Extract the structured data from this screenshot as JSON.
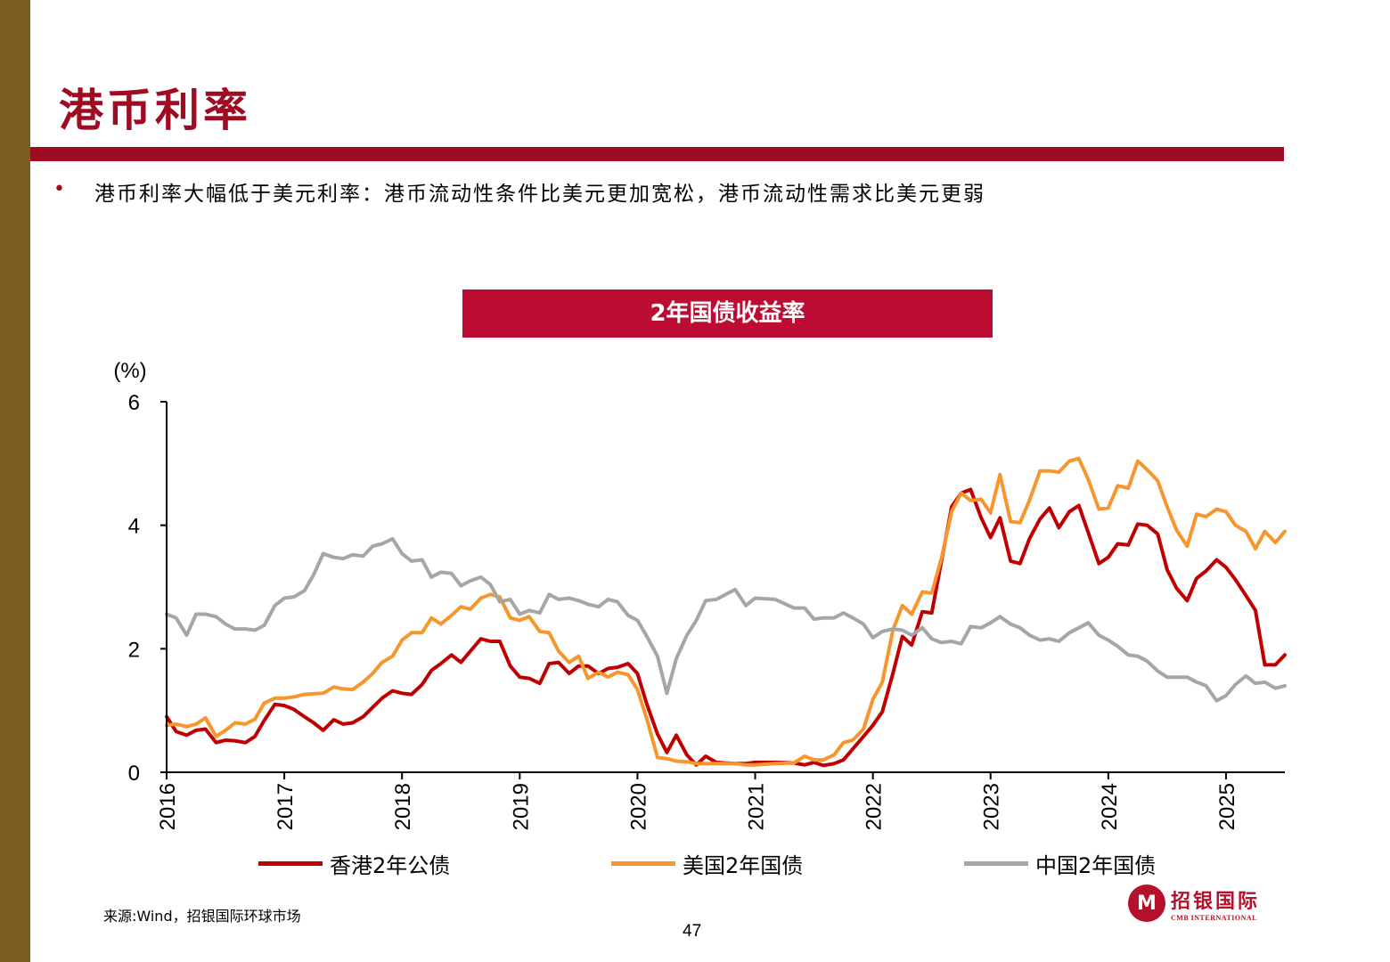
{
  "page": {
    "title": "港币利率",
    "bullet": "港币利率大幅低于美元利率：港币流动性条件比美元更加宽松，港币流动性需求比美元更弱",
    "source": "来源:Wind，招银国际环球市场",
    "page_number": "47"
  },
  "logo": {
    "cn": "招银国际",
    "en": "CMB INTERNATIONAL",
    "mark": "M"
  },
  "colors": {
    "hk": "#c00000",
    "us": "#f7962d",
    "cn": "#a6a6a6",
    "brand": "#9e0b22",
    "banner": "#bd0c33",
    "side": "#7a5c1e"
  },
  "chart_data": {
    "type": "line",
    "title": "2年国债收益率",
    "ylabel": "(%)",
    "ylim": [
      0,
      6
    ],
    "yticks": [
      0,
      2,
      4,
      6
    ],
    "xlim": [
      2016,
      2025.5
    ],
    "xticks": [
      "2016",
      "2017",
      "2018",
      "2019",
      "2020",
      "2021",
      "2022",
      "2023",
      "2024",
      "2025"
    ],
    "legend_position": "bottom",
    "grid": false,
    "series": [
      {
        "name": "香港2年公债",
        "color": "#c00000",
        "x": [
          2016.0,
          2016.08,
          2016.17,
          2016.25,
          2016.33,
          2016.42,
          2016.5,
          2016.58,
          2016.67,
          2016.75,
          2016.83,
          2016.92,
          2017.0,
          2017.08,
          2017.17,
          2017.25,
          2017.33,
          2017.42,
          2017.5,
          2017.58,
          2017.67,
          2017.75,
          2017.83,
          2017.92,
          2018.0,
          2018.08,
          2018.17,
          2018.25,
          2018.33,
          2018.42,
          2018.5,
          2018.58,
          2018.67,
          2018.75,
          2018.83,
          2018.92,
          2019.0,
          2019.08,
          2019.17,
          2019.25,
          2019.33,
          2019.42,
          2019.5,
          2019.58,
          2019.67,
          2019.75,
          2019.83,
          2019.92,
          2020.0,
          2020.08,
          2020.17,
          2020.25,
          2020.33,
          2020.42,
          2020.5,
          2020.58,
          2020.67,
          2020.75,
          2020.83,
          2020.92,
          2021.0,
          2021.17,
          2021.33,
          2021.42,
          2021.5,
          2021.58,
          2021.67,
          2021.75,
          2021.83,
          2021.92,
          2022.0,
          2022.08,
          2022.17,
          2022.25,
          2022.33,
          2022.42,
          2022.5,
          2022.58,
          2022.67,
          2022.75,
          2022.83,
          2022.92,
          2023.0,
          2023.08,
          2023.17,
          2023.25,
          2023.33,
          2023.42,
          2023.5,
          2023.58,
          2023.67,
          2023.75,
          2023.83,
          2023.92,
          2024.0,
          2024.08,
          2024.17,
          2024.25,
          2024.33,
          2024.42,
          2024.5,
          2024.58,
          2024.67,
          2024.75,
          2024.83,
          2024.92,
          2025.0,
          2025.08,
          2025.17,
          2025.25,
          2025.33,
          2025.42,
          2025.5
        ],
        "y": [
          0.9,
          0.66,
          0.6,
          0.68,
          0.7,
          0.48,
          0.52,
          0.51,
          0.48,
          0.58,
          0.84,
          1.1,
          1.08,
          1.02,
          0.9,
          0.8,
          0.68,
          0.85,
          0.78,
          0.8,
          0.9,
          1.05,
          1.2,
          1.32,
          1.28,
          1.26,
          1.42,
          1.65,
          1.76,
          1.9,
          1.78,
          1.96,
          2.16,
          2.12,
          2.12,
          1.72,
          1.54,
          1.52,
          1.44,
          1.76,
          1.78,
          1.6,
          1.72,
          1.72,
          1.6,
          1.68,
          1.7,
          1.76,
          1.6,
          1.1,
          0.62,
          0.32,
          0.6,
          0.28,
          0.12,
          0.26,
          0.16,
          0.15,
          0.14,
          0.14,
          0.16,
          0.16,
          0.15,
          0.12,
          0.16,
          0.11,
          0.14,
          0.2,
          0.38,
          0.58,
          0.76,
          0.98,
          1.6,
          2.2,
          2.06,
          2.6,
          2.58,
          3.4,
          4.3,
          4.52,
          4.58,
          4.12,
          3.8,
          4.12,
          3.42,
          3.38,
          3.78,
          4.1,
          4.28,
          3.96,
          4.22,
          4.32,
          3.88,
          3.38,
          3.48,
          3.7,
          3.68,
          4.02,
          4.0,
          3.86,
          3.28,
          2.98,
          2.78,
          3.14,
          3.26,
          3.44,
          3.32,
          3.12,
          2.86,
          2.62,
          1.74,
          1.74,
          1.9
        ]
      },
      {
        "name": "美国2年国债",
        "color": "#f7962d",
        "x": [
          2016.0,
          2016.08,
          2016.17,
          2016.25,
          2016.33,
          2016.42,
          2016.5,
          2016.58,
          2016.67,
          2016.75,
          2016.83,
          2016.92,
          2017.0,
          2017.08,
          2017.17,
          2017.25,
          2017.33,
          2017.42,
          2017.5,
          2017.58,
          2017.67,
          2017.75,
          2017.83,
          2017.92,
          2018.0,
          2018.08,
          2018.17,
          2018.25,
          2018.33,
          2018.42,
          2018.5,
          2018.58,
          2018.67,
          2018.75,
          2018.83,
          2018.92,
          2019.0,
          2019.08,
          2019.17,
          2019.25,
          2019.33,
          2019.42,
          2019.5,
          2019.58,
          2019.67,
          2019.75,
          2019.83,
          2019.92,
          2020.0,
          2020.08,
          2020.17,
          2020.25,
          2020.33,
          2020.42,
          2020.5,
          2020.58,
          2020.67,
          2020.75,
          2020.83,
          2020.92,
          2021.0,
          2021.17,
          2021.33,
          2021.42,
          2021.5,
          2021.58,
          2021.67,
          2021.75,
          2021.83,
          2021.92,
          2022.0,
          2022.08,
          2022.17,
          2022.25,
          2022.33,
          2022.42,
          2022.5,
          2022.58,
          2022.67,
          2022.75,
          2022.83,
          2022.92,
          2023.0,
          2023.08,
          2023.17,
          2023.25,
          2023.33,
          2023.42,
          2023.5,
          2023.58,
          2023.67,
          2023.75,
          2023.83,
          2023.92,
          2024.0,
          2024.08,
          2024.17,
          2024.25,
          2024.33,
          2024.42,
          2024.5,
          2024.58,
          2024.67,
          2024.75,
          2024.83,
          2024.92,
          2025.0,
          2025.08,
          2025.17,
          2025.25,
          2025.33,
          2025.42,
          2025.5
        ],
        "y": [
          0.76,
          0.78,
          0.74,
          0.78,
          0.88,
          0.58,
          0.68,
          0.8,
          0.78,
          0.86,
          1.12,
          1.2,
          1.2,
          1.22,
          1.26,
          1.27,
          1.28,
          1.38,
          1.35,
          1.34,
          1.46,
          1.6,
          1.78,
          1.88,
          2.14,
          2.26,
          2.26,
          2.5,
          2.4,
          2.54,
          2.68,
          2.64,
          2.82,
          2.88,
          2.84,
          2.5,
          2.46,
          2.52,
          2.28,
          2.26,
          1.96,
          1.78,
          1.88,
          1.52,
          1.62,
          1.54,
          1.62,
          1.58,
          1.34,
          0.86,
          0.24,
          0.22,
          0.18,
          0.17,
          0.14,
          0.14,
          0.14,
          0.14,
          0.14,
          0.12,
          0.12,
          0.14,
          0.15,
          0.26,
          0.2,
          0.2,
          0.28,
          0.48,
          0.52,
          0.7,
          1.18,
          1.46,
          2.3,
          2.7,
          2.56,
          2.92,
          2.9,
          3.45,
          4.22,
          4.52,
          4.4,
          4.42,
          4.2,
          4.82,
          4.06,
          4.04,
          4.4,
          4.88,
          4.88,
          4.86,
          5.04,
          5.08,
          4.74,
          4.26,
          4.28,
          4.64,
          4.6,
          5.04,
          4.9,
          4.72,
          4.3,
          3.92,
          3.66,
          4.18,
          4.14,
          4.26,
          4.22,
          4.0,
          3.9,
          3.62,
          3.9,
          3.72,
          3.9
        ]
      },
      {
        "name": "中国2年国债",
        "color": "#a6a6a6",
        "x": [
          2016.0,
          2016.08,
          2016.17,
          2016.25,
          2016.33,
          2016.42,
          2016.5,
          2016.58,
          2016.67,
          2016.75,
          2016.83,
          2016.92,
          2017.0,
          2017.08,
          2017.17,
          2017.25,
          2017.33,
          2017.42,
          2017.5,
          2017.58,
          2017.67,
          2017.75,
          2017.83,
          2017.92,
          2018.0,
          2018.08,
          2018.17,
          2018.25,
          2018.33,
          2018.42,
          2018.5,
          2018.58,
          2018.67,
          2018.75,
          2018.83,
          2018.92,
          2019.0,
          2019.08,
          2019.17,
          2019.25,
          2019.33,
          2019.42,
          2019.5,
          2019.58,
          2019.67,
          2019.75,
          2019.83,
          2019.92,
          2020.0,
          2020.08,
          2020.17,
          2020.25,
          2020.33,
          2020.42,
          2020.5,
          2020.58,
          2020.67,
          2020.75,
          2020.83,
          2020.92,
          2021.0,
          2021.17,
          2021.33,
          2021.42,
          2021.5,
          2021.58,
          2021.67,
          2021.75,
          2021.83,
          2021.92,
          2022.0,
          2022.08,
          2022.17,
          2022.25,
          2022.33,
          2022.42,
          2022.5,
          2022.58,
          2022.67,
          2022.75,
          2022.83,
          2022.92,
          2023.0,
          2023.08,
          2023.17,
          2023.25,
          2023.33,
          2023.42,
          2023.5,
          2023.58,
          2023.67,
          2023.75,
          2023.83,
          2023.92,
          2024.0,
          2024.08,
          2024.17,
          2024.25,
          2024.33,
          2024.42,
          2024.5,
          2024.58,
          2024.67,
          2024.75,
          2024.83,
          2024.92,
          2025.0,
          2025.08,
          2025.17,
          2025.25,
          2025.33,
          2025.42,
          2025.5
        ],
        "y": [
          2.56,
          2.5,
          2.22,
          2.56,
          2.56,
          2.52,
          2.4,
          2.32,
          2.32,
          2.3,
          2.38,
          2.7,
          2.82,
          2.84,
          2.94,
          3.2,
          3.54,
          3.48,
          3.46,
          3.52,
          3.5,
          3.66,
          3.7,
          3.78,
          3.54,
          3.42,
          3.44,
          3.16,
          3.24,
          3.22,
          3.02,
          3.1,
          3.16,
          3.04,
          2.76,
          2.8,
          2.56,
          2.62,
          2.58,
          2.88,
          2.8,
          2.82,
          2.78,
          2.72,
          2.68,
          2.8,
          2.76,
          2.54,
          2.46,
          2.2,
          1.88,
          1.28,
          1.84,
          2.22,
          2.46,
          2.78,
          2.8,
          2.88,
          2.96,
          2.7,
          2.82,
          2.8,
          2.66,
          2.66,
          2.48,
          2.5,
          2.5,
          2.58,
          2.5,
          2.4,
          2.18,
          2.28,
          2.32,
          2.3,
          2.22,
          2.34,
          2.16,
          2.1,
          2.12,
          2.08,
          2.36,
          2.34,
          2.42,
          2.52,
          2.4,
          2.34,
          2.22,
          2.14,
          2.16,
          2.12,
          2.26,
          2.34,
          2.42,
          2.22,
          2.14,
          2.04,
          1.9,
          1.88,
          1.8,
          1.64,
          1.54,
          1.54,
          1.54,
          1.46,
          1.4,
          1.16,
          1.24,
          1.42,
          1.56,
          1.44,
          1.46,
          1.36,
          1.4
        ]
      }
    ]
  }
}
